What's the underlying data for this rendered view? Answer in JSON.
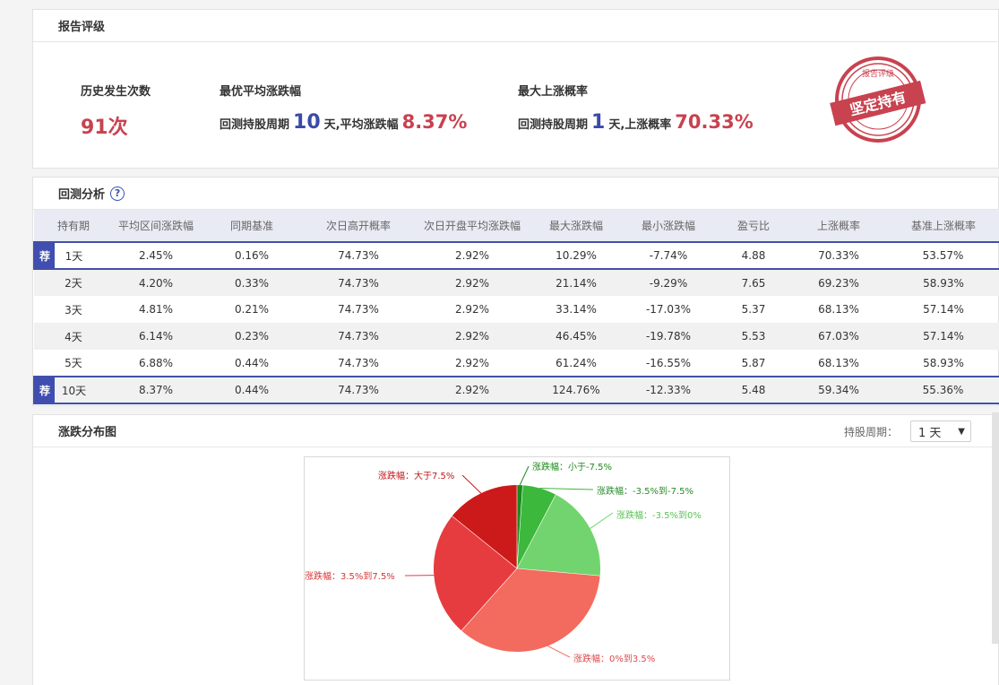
{
  "rating": {
    "title": "报告评级",
    "history_label": "历史发生次数",
    "history_count": "91次",
    "best_avg_label": "最优平均涨跌幅",
    "best_avg_prefix": "回测持股周期",
    "best_avg_period": "10",
    "best_avg_mid": "天,平均涨跌幅",
    "best_avg_value": "8.37%",
    "max_up_label": "最大上涨概率",
    "max_up_prefix": "回测持股周期",
    "max_up_period": "1",
    "max_up_mid": "天,上涨概率",
    "max_up_value": "70.33%",
    "stamp_text": "坚定持有",
    "stamp_top_text": "报告评级",
    "stamp_color": "#c8424f"
  },
  "analysis": {
    "title": "回测分析",
    "help_icon": "?",
    "columns": [
      "持有期",
      "平均区间涨跌幅",
      "同期基准",
      "次日高开概率",
      "次日开盘平均涨跌幅",
      "最大涨跌幅",
      "最小涨跌幅",
      "盈亏比",
      "上涨概率",
      "基准上涨概率"
    ],
    "rec_tag": "荐",
    "rows": [
      {
        "cells": [
          "1天",
          "2.45%",
          "0.16%",
          "74.73%",
          "2.92%",
          "10.29%",
          "-7.74%",
          "4.88",
          "70.33%",
          "53.57%"
        ],
        "recommended": true
      },
      {
        "cells": [
          "2天",
          "4.20%",
          "0.33%",
          "74.73%",
          "2.92%",
          "21.14%",
          "-9.29%",
          "7.65",
          "69.23%",
          "58.93%"
        ],
        "recommended": false
      },
      {
        "cells": [
          "3天",
          "4.81%",
          "0.21%",
          "74.73%",
          "2.92%",
          "33.14%",
          "-17.03%",
          "5.37",
          "68.13%",
          "57.14%"
        ],
        "recommended": false
      },
      {
        "cells": [
          "4天",
          "6.14%",
          "0.23%",
          "74.73%",
          "2.92%",
          "46.45%",
          "-19.78%",
          "5.53",
          "67.03%",
          "57.14%"
        ],
        "recommended": false
      },
      {
        "cells": [
          "5天",
          "6.88%",
          "0.44%",
          "74.73%",
          "2.92%",
          "61.24%",
          "-16.55%",
          "5.87",
          "68.13%",
          "58.93%"
        ],
        "recommended": false
      },
      {
        "cells": [
          "10天",
          "8.37%",
          "0.44%",
          "74.73%",
          "2.92%",
          "124.76%",
          "-12.33%",
          "5.48",
          "59.34%",
          "55.36%"
        ],
        "recommended": true
      }
    ]
  },
  "distribution": {
    "title": "涨跌分布图",
    "period_label": "持股周期：",
    "period_value": "1 天",
    "period_arrow": "▼"
  },
  "chart_data": {
    "type": "pie",
    "slices": [
      {
        "label": "涨跌幅：小于-7.5%",
        "value": 1.1,
        "color": "#1a8a1a"
      },
      {
        "label": "涨跌幅：-3.5%到-7.5%",
        "value": 6.6,
        "color": "#3cb83c"
      },
      {
        "label": "涨跌幅：-3.5%到0%",
        "value": 18.7,
        "color": "#72d46e"
      },
      {
        "label": "涨跌幅：0%到3.5%",
        "value": 35.2,
        "color": "#f26b5e"
      },
      {
        "label": "涨跌幅：3.5%到7.5%",
        "value": 24.2,
        "color": "#e63c40"
      },
      {
        "label": "涨跌幅：大于7.5%",
        "value": 14.2,
        "color": "#cc1a1a"
      }
    ],
    "label_colors": {
      "涨跌幅：小于-7.5%": "#1a8a1a",
      "涨跌幅：-3.5%到-7.5%": "#2a8a2a",
      "涨跌幅：-3.5%到0%": "#5cc25a",
      "涨跌幅：0%到3.5%": "#e04848",
      "涨跌幅：3.5%到7.5%": "#d83636",
      "涨跌幅：大于7.5%": "#c01818"
    }
  }
}
